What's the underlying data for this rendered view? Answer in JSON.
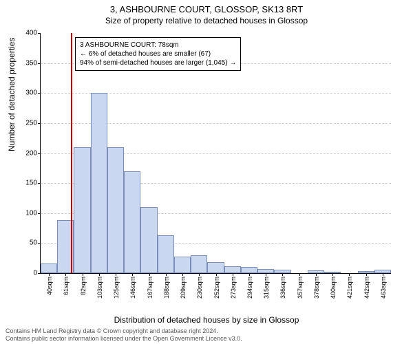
{
  "title": "3, ASHBOURNE COURT, GLOSSOP, SK13 8RT",
  "subtitle": "Size of property relative to detached houses in Glossop",
  "y_label": "Number of detached properties",
  "x_label": "Distribution of detached houses by size in Glossop",
  "chart": {
    "type": "histogram",
    "bar_fill": "#c9d7f0",
    "bar_stroke": "#7a8db8",
    "grid_color": "#cccccc",
    "background": "#ffffff",
    "ylim": [
      0,
      400
    ],
    "ytick_step": 50,
    "x_categories": [
      "40sqm",
      "61sqm",
      "82sqm",
      "103sqm",
      "125sqm",
      "146sqm",
      "167sqm",
      "188sqm",
      "209sqm",
      "230sqm",
      "252sqm",
      "273sqm",
      "294sqm",
      "315sqm",
      "336sqm",
      "357sqm",
      "378sqm",
      "400sqm",
      "421sqm",
      "442sqm",
      "463sqm"
    ],
    "values": [
      16,
      88,
      210,
      300,
      210,
      170,
      110,
      63,
      28,
      30,
      18,
      12,
      10,
      7,
      6,
      0,
      5,
      2,
      0,
      3,
      6
    ],
    "marker_x_value": 78,
    "marker_color": "#cc0000",
    "x_min": 40,
    "x_bin_width": 21
  },
  "annotation": {
    "line1": "3 ASHBOURNE COURT: 78sqm",
    "line2": "← 6% of detached houses are smaller (67)",
    "line3": "94% of semi-detached houses are larger (1,045) →"
  },
  "footer": {
    "line1": "Contains HM Land Registry data © Crown copyright and database right 2024.",
    "line2": "Contains public sector information licensed under the Open Government Licence v3.0."
  }
}
